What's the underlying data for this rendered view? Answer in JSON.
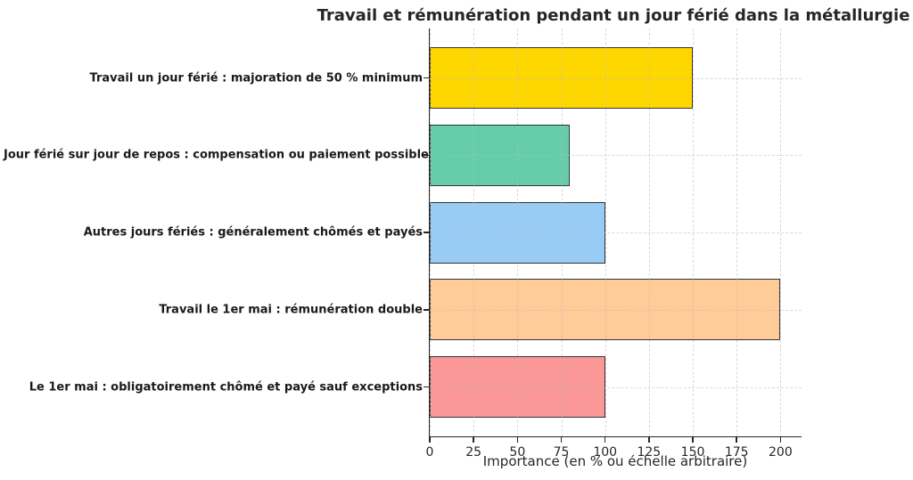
{
  "chart_data": {
    "type": "bar",
    "orientation": "horizontal",
    "title": "Travail et rémunération pendant un jour férié dans la métallurgie",
    "xlabel": "Importance (en % ou échelle arbitraire)",
    "ylabel": "",
    "categories": [
      "Travail un jour férié : majoration de 50 % minimum",
      "Jour férié sur jour de repos : compensation ou paiement possible",
      "Autres jours fériés : généralement chômés et payés",
      "Travail le 1er mai : rémunération double",
      "Le 1er mai : obligatoirement chômé et payé sauf exceptions"
    ],
    "values": [
      150,
      80,
      100,
      200,
      100
    ],
    "bar_colors": [
      "#FFD700",
      "#66CDAA",
      "#99CCF5",
      "#FFCC99",
      "#FA9797"
    ],
    "bar_edge_color": "#333333",
    "xticks": [
      0,
      25,
      50,
      75,
      100,
      125,
      150,
      175,
      200
    ],
    "xlim": [
      0,
      212
    ],
    "grid": "dashed, both axes, drawn over bars",
    "legend": "none",
    "spines": "left and bottom only",
    "axis_color": "#262626",
    "grid_color": "#b9b9b9",
    "title_color": "#262626",
    "background_color": "#ffffff"
  }
}
